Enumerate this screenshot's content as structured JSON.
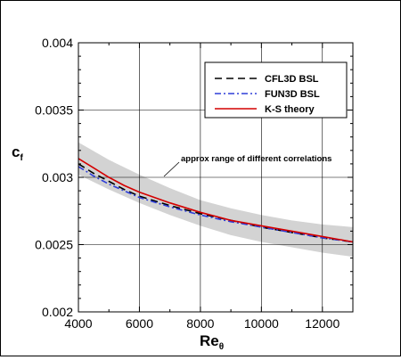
{
  "chart_data": {
    "type": "line",
    "xlabel": "Re",
    "xlabel_sub": "θ",
    "ylabel": "c",
    "ylabel_sub": "f",
    "xlim": [
      4000,
      13000
    ],
    "ylim": [
      0.002,
      0.004
    ],
    "x_ticks": [
      4000,
      6000,
      8000,
      10000,
      12000
    ],
    "y_ticks": [
      0.002,
      0.0025,
      0.003,
      0.0035,
      0.004
    ],
    "x_tick_labels": [
      "4000",
      "6000",
      "8000",
      "10000",
      "12000"
    ],
    "y_tick_labels": [
      "0.002",
      "0.0025",
      "0.003",
      "0.0035",
      "0.004"
    ],
    "grid": true,
    "legend_position": "top-right",
    "band": {
      "label": "approx range of different correlations",
      "color": "#d3d3d3",
      "x": [
        4000,
        5000,
        6000,
        7000,
        8000,
        9000,
        10000,
        11000,
        12000,
        13000
      ],
      "upper": [
        0.00326,
        0.00313,
        0.00302,
        0.00292,
        0.00283,
        0.00277,
        0.00272,
        0.00268,
        0.00265,
        0.00263
      ],
      "lower": [
        0.00302,
        0.00291,
        0.00281,
        0.00272,
        0.00264,
        0.00257,
        0.00252,
        0.00248,
        0.00244,
        0.00241
      ]
    },
    "series": [
      {
        "name": "CFL3D BSL",
        "color": "#000000",
        "dash": "8,5",
        "x": [
          4000,
          4500,
          5000,
          5500,
          6000,
          7000,
          8000,
          9000,
          10000,
          11000,
          12000,
          13000
        ],
        "y": [
          0.0031,
          0.00303,
          0.00297,
          0.00291,
          0.00286,
          0.00279,
          0.00273,
          0.00268,
          0.00263,
          0.00259,
          0.00255,
          0.00252
        ]
      },
      {
        "name": "FUN3D BSL",
        "color": "#2f3fd8",
        "dash": "7,3,2,3",
        "x": [
          4000,
          4500,
          5000,
          5500,
          6000,
          7000,
          8000,
          9000,
          10000,
          11000,
          12000,
          13000
        ],
        "y": [
          0.00308,
          0.00301,
          0.00295,
          0.0029,
          0.00285,
          0.00278,
          0.00272,
          0.00267,
          0.00263,
          0.00259,
          0.00255,
          0.00252
        ]
      },
      {
        "name": "K-S theory",
        "color": "#d40000",
        "dash": "",
        "x": [
          4000,
          4500,
          5000,
          5500,
          6000,
          7000,
          8000,
          9000,
          10000,
          11000,
          12000,
          13000
        ],
        "y": [
          0.00314,
          0.00307,
          0.003,
          0.00294,
          0.00289,
          0.00281,
          0.00274,
          0.00268,
          0.00264,
          0.0026,
          0.00256,
          0.00252
        ]
      }
    ]
  }
}
